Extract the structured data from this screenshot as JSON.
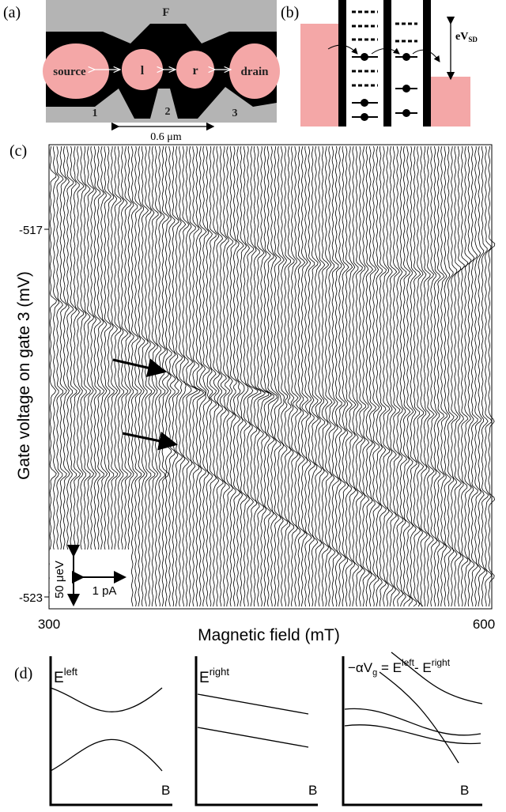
{
  "panels": {
    "a": {
      "label": "(a)",
      "top_gate": "F",
      "source": "source",
      "left_dot": "l",
      "right_dot": "r",
      "drain": "drain",
      "gates": [
        "1",
        "2",
        "3"
      ],
      "scale": "0.6 μm"
    },
    "b": {
      "label": "(b)",
      "bias": "eV",
      "bias_sub": "SD"
    },
    "c": {
      "label": "(c)",
      "x_label": "Magnetic field (mT)",
      "y_label": "Gate voltage on gate 3 (mV)",
      "x_ticks": [
        "300",
        "600"
      ],
      "y_ticks": [
        "-517",
        "-523"
      ],
      "scale_energy": "50 μeV",
      "scale_current": "1 pA"
    },
    "d": {
      "label": "(d)",
      "left": {
        "e": "E",
        "sup": "left",
        "axis": "B"
      },
      "right": {
        "e": "E",
        "sup": "right",
        "axis": "B"
      },
      "difference": {
        "lhs": "−αV",
        "lhs_sub": "g",
        "eq": " = E",
        "sup1": "left",
        "minus": "- E",
        "sup2": "right",
        "axis": "B"
      }
    }
  }
}
